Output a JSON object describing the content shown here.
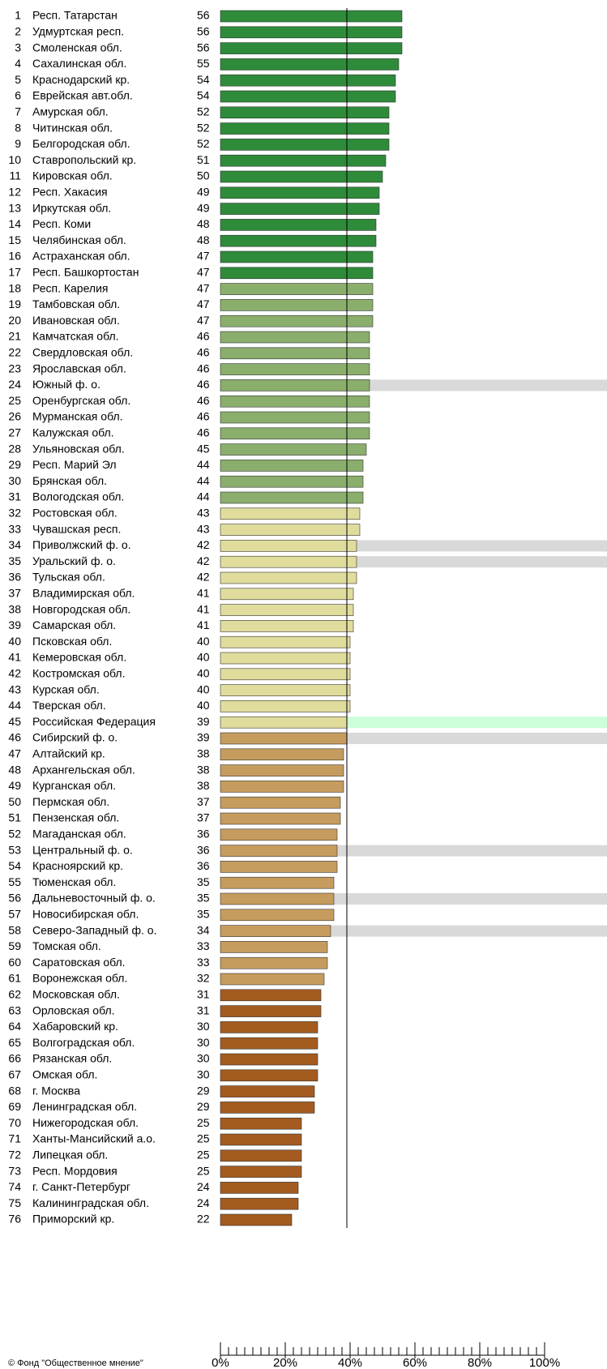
{
  "chart_data": {
    "type": "bar",
    "orientation": "horizontal",
    "ranks": [
      1,
      2,
      3,
      4,
      5,
      6,
      7,
      8,
      9,
      10,
      11,
      12,
      13,
      14,
      15,
      16,
      17,
      18,
      19,
      20,
      21,
      22,
      23,
      24,
      25,
      26,
      27,
      28,
      29,
      30,
      31,
      32,
      33,
      34,
      35,
      36,
      37,
      38,
      39,
      40,
      41,
      42,
      43,
      44,
      45,
      46,
      47,
      48,
      49,
      50,
      51,
      52,
      53,
      54,
      55,
      56,
      57,
      58,
      59,
      60,
      61,
      62,
      63,
      64,
      65,
      66,
      67,
      68,
      69,
      70,
      71,
      72,
      73,
      74,
      75,
      76
    ],
    "categories": [
      "Респ. Татарстан",
      "Удмуртская респ.",
      "Смоленская обл.",
      "Сахалинская обл.",
      "Краснодарский кр.",
      "Еврейская авт.обл.",
      "Амурская обл.",
      "Читинская обл.",
      "Белгородская обл.",
      "Ставропольский кр.",
      "Кировская обл.",
      "Респ. Хакасия",
      "Иркутская обл.",
      "Респ. Коми",
      "Челябинская обл.",
      "Астраханская обл.",
      "Респ. Башкортостан",
      "Респ. Карелия",
      "Тамбовская обл.",
      "Ивановская обл.",
      "Камчатская обл.",
      "Свердловская обл.",
      "Ярославская обл.",
      "Южный ф. о.",
      "Оренбургская обл.",
      "Мурманская обл.",
      "Калужская обл.",
      "Ульяновская обл.",
      "Респ. Марий Эл",
      "Брянская обл.",
      "Вологодская обл.",
      "Ростовская обл.",
      "Чувашская респ.",
      "Приволжский ф. о.",
      "Уральский ф. о.",
      "Тульская обл.",
      "Владимирская обл.",
      "Новгородская обл.",
      "Самарская обл.",
      "Псковская обл.",
      "Кемеровская обл.",
      "Костромская обл.",
      "Курская обл.",
      "Тверская обл.",
      "Российская Федерация",
      "Сибирский ф. о.",
      "Алтайский кр.",
      "Архангельская обл.",
      "Курганская обл.",
      "Пермская обл.",
      "Пензенская обл.",
      "Магаданская обл.",
      "Центральный ф. о.",
      "Красноярский кр.",
      "Тюменская обл.",
      "Дальневосточный ф. о.",
      "Новосибирская обл.",
      "Северо-Западный ф. о.",
      "Томская обл.",
      "Саратовская обл.",
      "Воронежская обл.",
      "Московская обл.",
      "Орловская обл.",
      "Хабаровский кр.",
      "Волгоградская обл.",
      "Рязанская обл.",
      "Омская обл.",
      "г. Москва",
      "Ленинградская обл.",
      "Нижегородская обл.",
      "Ханты-Мансийский а.о.",
      "Липецкая обл.",
      "Респ. Мордовия",
      "г. Санкт-Петербург",
      "Калининградская обл.",
      "Приморский кр."
    ],
    "values": [
      56,
      56,
      56,
      55,
      54,
      54,
      52,
      52,
      52,
      51,
      50,
      49,
      49,
      48,
      48,
      47,
      47,
      47,
      47,
      47,
      46,
      46,
      46,
      46,
      46,
      46,
      46,
      45,
      44,
      44,
      44,
      43,
      43,
      42,
      42,
      42,
      41,
      41,
      41,
      40,
      40,
      40,
      40,
      40,
      39,
      39,
      38,
      38,
      38,
      37,
      37,
      36,
      36,
      36,
      35,
      35,
      35,
      34,
      33,
      33,
      32,
      31,
      31,
      30,
      30,
      30,
      30,
      29,
      29,
      25,
      25,
      25,
      25,
      24,
      24,
      22
    ],
    "colors": [
      "#2e8b3a",
      "#2e8b3a",
      "#2e8b3a",
      "#2e8b3a",
      "#2e8b3a",
      "#2e8b3a",
      "#2e8b3a",
      "#2e8b3a",
      "#2e8b3a",
      "#2e8b3a",
      "#2e8b3a",
      "#2e8b3a",
      "#2e8b3a",
      "#2e8b3a",
      "#2e8b3a",
      "#2e8b3a",
      "#2e8b3a",
      "#8aae6c",
      "#8aae6c",
      "#8aae6c",
      "#8aae6c",
      "#8aae6c",
      "#8aae6c",
      "#8aae6c",
      "#8aae6c",
      "#8aae6c",
      "#8aae6c",
      "#8aae6c",
      "#8aae6c",
      "#8aae6c",
      "#8aae6c",
      "#e0dc9c",
      "#e0dc9c",
      "#e0dc9c",
      "#e0dc9c",
      "#e0dc9c",
      "#e0dc9c",
      "#e0dc9c",
      "#e0dc9c",
      "#e0dc9c",
      "#e0dc9c",
      "#e0dc9c",
      "#e0dc9c",
      "#e0dc9c",
      "#e0dc9c",
      "#c69c5e",
      "#c69c5e",
      "#c69c5e",
      "#c69c5e",
      "#c69c5e",
      "#c69c5e",
      "#c69c5e",
      "#c69c5e",
      "#c69c5e",
      "#c69c5e",
      "#c69c5e",
      "#c69c5e",
      "#c69c5e",
      "#c69c5e",
      "#c69c5e",
      "#c69c5e",
      "#a35b20",
      "#a35b20",
      "#a35b20",
      "#a35b20",
      "#a35b20",
      "#a35b20",
      "#a35b20",
      "#a35b20",
      "#a35b20",
      "#a35b20",
      "#a35b20",
      "#a35b20",
      "#a35b20",
      "#a35b20",
      "#a35b20"
    ],
    "row_band_colors": [
      null,
      null,
      null,
      null,
      null,
      null,
      null,
      null,
      null,
      null,
      null,
      null,
      null,
      null,
      null,
      null,
      null,
      null,
      null,
      null,
      null,
      null,
      null,
      "#d9d9d9",
      null,
      null,
      null,
      null,
      null,
      null,
      null,
      null,
      null,
      "#d9d9d9",
      "#d9d9d9",
      null,
      null,
      null,
      null,
      null,
      null,
      null,
      null,
      null,
      "#ccffd9",
      "#d9d9d9",
      null,
      null,
      null,
      null,
      null,
      null,
      "#d9d9d9",
      null,
      null,
      "#d9d9d9",
      null,
      "#d9d9d9",
      null,
      null,
      null,
      null,
      null,
      null,
      null,
      null,
      null,
      null,
      null,
      null,
      null,
      null,
      null,
      null,
      null,
      null
    ],
    "reference_band_color": "#ccffd9",
    "xlim": [
      0,
      100
    ],
    "xticks": [
      {
        "value": 0,
        "label": "0%"
      },
      {
        "value": 20,
        "label": "20%"
      },
      {
        "value": 40,
        "label": "40%"
      },
      {
        "value": 60,
        "label": "60%"
      },
      {
        "value": 80,
        "label": "80%"
      },
      {
        "value": 100,
        "label": "100%"
      }
    ],
    "footer": "© Фонд \"Общественное мнение\""
  }
}
